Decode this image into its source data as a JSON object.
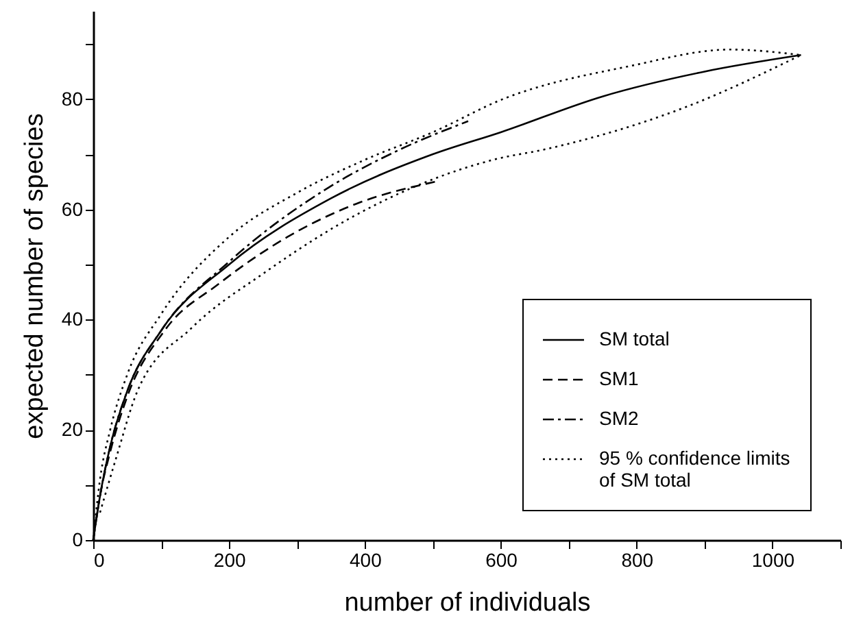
{
  "chart_data": {
    "type": "line",
    "xlabel": "number of individuals",
    "ylabel": "expected number of species",
    "xlim": [
      0,
      1100
    ],
    "ylim": [
      0,
      96
    ],
    "xticks": [
      0,
      {
        "value": 100,
        "label": null
      },
      200,
      {
        "value": 300,
        "label": null
      },
      400,
      {
        "value": 500,
        "label": null
      },
      600,
      {
        "value": 700,
        "label": null
      },
      800,
      {
        "value": 900,
        "label": null
      },
      1000,
      {
        "value": 1100,
        "label": null
      }
    ],
    "yticks": [
      0,
      {
        "value": 10,
        "label": null
      },
      20,
      {
        "value": 30,
        "label": null
      },
      40,
      {
        "value": 50,
        "label": null
      },
      60,
      {
        "value": 70,
        "label": null
      },
      80,
      {
        "value": 90,
        "label": null
      }
    ],
    "grid": false,
    "legend": "bottom right",
    "series": [
      {
        "name": "SM total",
        "color": "#000000",
        "line_style": "solid",
        "x": [
          0,
          10,
          25,
          50,
          100,
          200,
          350,
          500,
          600,
          750,
          900,
          1042
        ],
        "values": [
          0,
          8,
          17,
          27,
          38,
          50,
          62,
          70,
          74,
          80.5,
          85,
          88
        ]
      },
      {
        "name": "SM1",
        "color": "#000000",
        "line_style": "dashed",
        "x": [
          0,
          10,
          25,
          50,
          105,
          185,
          286,
          387,
          503
        ],
        "values": [
          0,
          8,
          16,
          26,
          38,
          46.5,
          55,
          61,
          65
        ]
      },
      {
        "name": "SM2",
        "color": "#000000",
        "line_style": "dashdot",
        "x": [
          0,
          10,
          25,
          50,
          100,
          200,
          347,
          454,
          552
        ],
        "values": [
          0,
          8,
          17,
          27,
          38,
          50.5,
          64,
          71,
          76
        ]
      },
      {
        "name": "95 % confidence limits\nof SM total",
        "color": "#000000",
        "line_style": "dotted",
        "x": [
          0,
          10,
          25,
          50,
          100,
          200,
          300,
          400,
          500,
          603,
          790,
          938,
          1042
        ],
        "values": [
          0,
          11,
          20,
          30,
          41,
          55,
          63,
          69,
          74,
          80,
          86,
          89,
          88
        ]
      },
      {
        "color": "#000000",
        "line_style": "dotted",
        "x": [
          10,
          34,
          65,
          145,
          252,
          387,
          589,
          669,
          871,
          1042
        ],
        "values": [
          5,
          15,
          27,
          38.5,
          48.5,
          59,
          69,
          71,
          78.5,
          88
        ]
      }
    ]
  }
}
